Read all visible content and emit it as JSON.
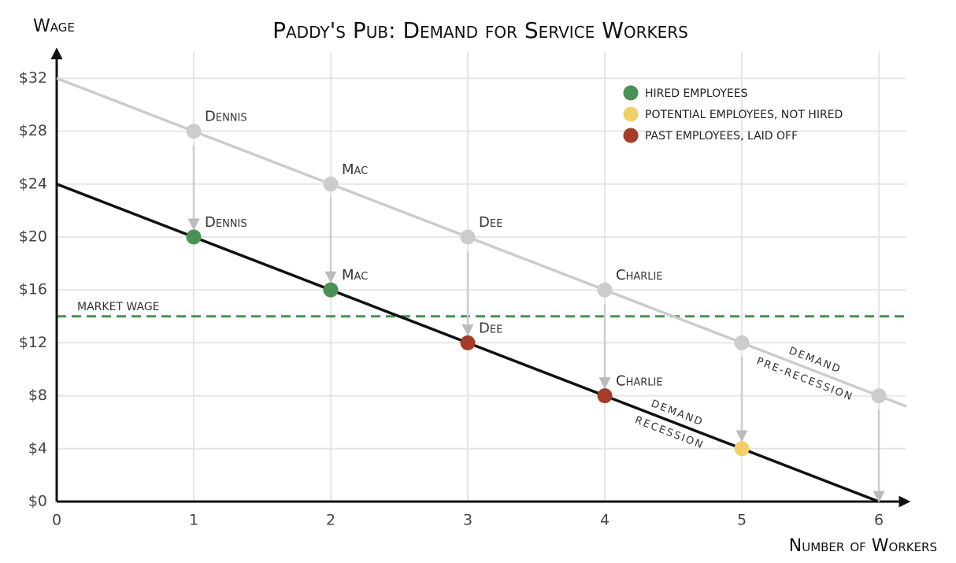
{
  "chart_data": {
    "type": "line",
    "title": "Paddy's Pub: Demand for Service Workers",
    "y_label": "Wage",
    "x_label": "Number of Workers",
    "xlim": [
      0,
      6.2
    ],
    "ylim": [
      0,
      34
    ],
    "xticks": [
      0,
      1,
      2,
      3,
      4,
      5,
      6
    ],
    "yticks": [
      {
        "value": 0,
        "label": "$0"
      },
      {
        "value": 4,
        "label": "$4"
      },
      {
        "value": 8,
        "label": "$8"
      },
      {
        "value": 12,
        "label": "$12"
      },
      {
        "value": 16,
        "label": "$16"
      },
      {
        "value": 20,
        "label": "$20"
      },
      {
        "value": 24,
        "label": "$24"
      },
      {
        "value": 28,
        "label": "$28"
      },
      {
        "value": 32,
        "label": "$32"
      }
    ],
    "grid": true,
    "series": [
      {
        "label_lines": [
          "demand",
          "pre-recession"
        ],
        "color": "#cccccc",
        "x": [
          0,
          1,
          2,
          3,
          4,
          5,
          6,
          6.2
        ],
        "values": [
          32,
          28,
          24,
          20,
          16,
          12,
          8,
          7.2
        ]
      },
      {
        "label_lines": [
          "demand",
          "recession"
        ],
        "color": "#111111",
        "x": [
          0,
          1,
          2,
          3,
          4,
          5,
          6
        ],
        "values": [
          24,
          20,
          16,
          12,
          8,
          4,
          0
        ]
      }
    ],
    "workers": [
      {
        "name": "Dennis",
        "x": 1,
        "before": 28,
        "after": 20,
        "color": "#4a9156"
      },
      {
        "name": "Mac",
        "x": 2,
        "before": 24,
        "after": 16,
        "color": "#4a9156"
      },
      {
        "name": "Dee",
        "x": 3,
        "before": 20,
        "after": 12,
        "color": "#a33d2a"
      },
      {
        "name": "Charlie",
        "x": 4,
        "before": 16,
        "after": 8,
        "color": "#a33d2a"
      },
      {
        "x": 5,
        "before": 12,
        "after": 4,
        "color": "#f2d067"
      },
      {
        "x": 6,
        "before": 8,
        "after": 0
      }
    ],
    "before_color": "#cccccc",
    "market_wage": {
      "label": "market wage",
      "value": 14,
      "color": "#4a9156"
    },
    "legend": [
      {
        "label": "Hired employees",
        "color": "#4a9156"
      },
      {
        "label": "Potential employees, not hired",
        "color": "#f2d067"
      },
      {
        "label": "Past employees, laid off",
        "color": "#a33d2a"
      }
    ]
  }
}
